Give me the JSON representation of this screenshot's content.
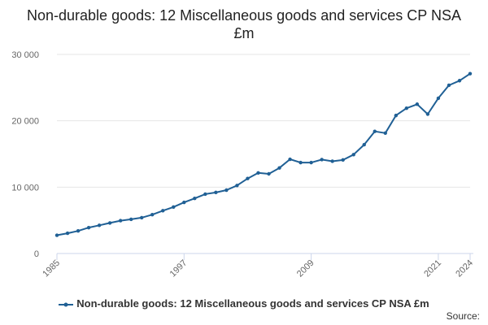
{
  "title": "Non-durable goods: 12 Miscellaneous goods and services CP NSA £m",
  "source_label": "Source:",
  "colors": {
    "series": "#206095",
    "grid": "#e6e6e6",
    "axis": "#ccd6eb",
    "tick_text": "#666666"
  },
  "chart_data": {
    "type": "line",
    "title": "Non-durable goods: 12 Miscellaneous goods and services CP NSA £m",
    "xlabel": "",
    "ylabel": "",
    "xlim": [
      1985,
      2024
    ],
    "ylim": [
      0,
      30000
    ],
    "x_ticks": [
      1985,
      1997,
      2009,
      2021,
      2024
    ],
    "y_ticks": [
      0,
      10000,
      20000,
      30000
    ],
    "y_tick_labels": [
      "0",
      "10 000",
      "20 000",
      "30 000"
    ],
    "grid": true,
    "legend_position": "bottom",
    "series": [
      {
        "name": "Non-durable goods: 12 Miscellaneous goods and services CP NSA £m",
        "x": [
          1985,
          1986,
          1987,
          1988,
          1989,
          1990,
          1991,
          1992,
          1993,
          1994,
          1995,
          1996,
          1997,
          1998,
          1999,
          2000,
          2001,
          2002,
          2003,
          2004,
          2005,
          2006,
          2007,
          2008,
          2009,
          2010,
          2011,
          2012,
          2013,
          2014,
          2015,
          2016,
          2017,
          2018,
          2019,
          2020,
          2021,
          2022,
          2023,
          2024
        ],
        "values": [
          2750,
          3050,
          3400,
          3900,
          4250,
          4600,
          4950,
          5150,
          5400,
          5850,
          6450,
          7000,
          7700,
          8300,
          8950,
          9200,
          9550,
          10250,
          11300,
          12150,
          12000,
          12900,
          14200,
          13700,
          13700,
          14150,
          13900,
          14100,
          14900,
          16400,
          18400,
          18150,
          20800,
          21900,
          22500,
          21000,
          23400,
          25350,
          26050,
          27100
        ]
      }
    ]
  }
}
